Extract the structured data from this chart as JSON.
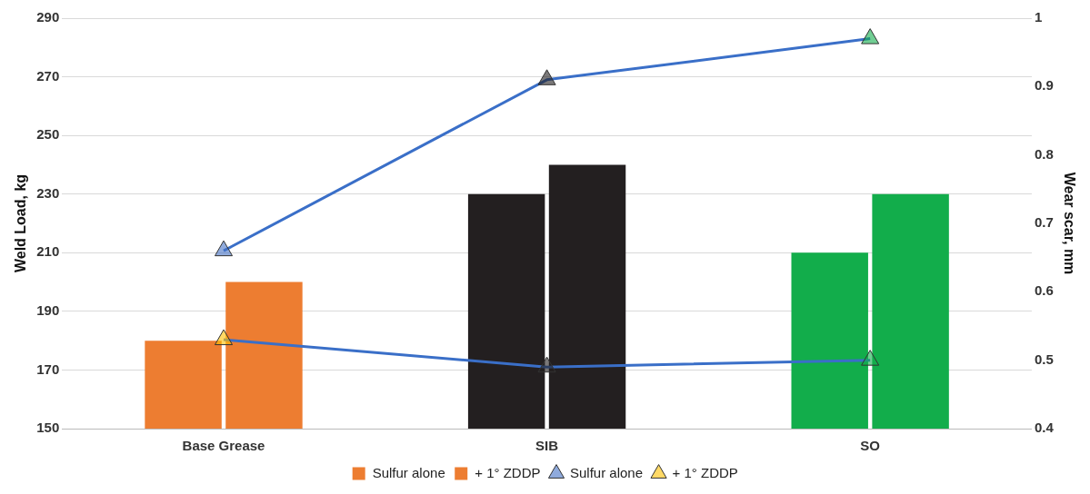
{
  "chart_data": {
    "type": "bar",
    "categories": [
      "Base Grease",
      "SIB",
      "SO"
    ],
    "ylabel": "Weld Load, kg",
    "y2label": "Wear scar, mm",
    "ylim": [
      150,
      290
    ],
    "yticks": [
      150,
      170,
      190,
      210,
      230,
      250,
      270,
      290
    ],
    "y2lim": [
      0.4,
      1
    ],
    "y2ticks": [
      0.4,
      0.5,
      0.6,
      0.7,
      0.8,
      0.9,
      1
    ],
    "grid": "y",
    "legend": "bottom",
    "marker": "triangle",
    "series": [
      {
        "name": "Sulfur alone",
        "colors": [
          "#ed7d31",
          "#231f20",
          "#12ad4b"
        ],
        "values": [
          180,
          230,
          210
        ]
      },
      {
        "name": "+ 1° ZDDP",
        "colors": [
          "#ed7d31",
          "#231f20",
          "#12ad4b"
        ],
        "values": [
          200,
          240,
          230
        ]
      },
      {
        "name": "Sulfur alone",
        "type": "line",
        "axis": "y2",
        "color": "#3a6fc8",
        "colors": [
          "#4472c4",
          "#231f20",
          "#12ad4b"
        ],
        "values": [
          0.66,
          0.91,
          0.97
        ]
      },
      {
        "name": "+ 1° ZDDP",
        "type": "line",
        "axis": "y2",
        "color": "#3a6fc8",
        "colors": [
          "#ffc000",
          "#231f20",
          "#12ad4b"
        ],
        "values": [
          0.53,
          0.49,
          0.5
        ]
      }
    ]
  }
}
